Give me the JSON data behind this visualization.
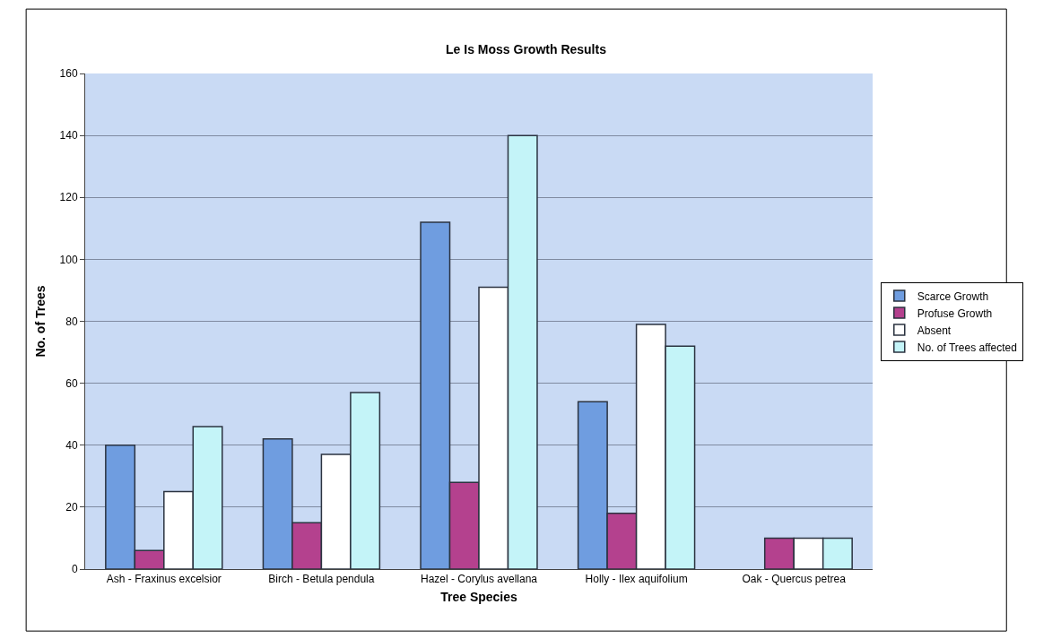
{
  "chart_data": {
    "type": "bar",
    "title": "Le Is Moss Growth Results",
    "xlabel": "Tree Species",
    "ylabel": "No. of Trees",
    "categories": [
      "Ash - Fraxinus excelsior",
      "Birch - Betula pendula",
      "Hazel - Corylus avellana",
      "Holly - Ilex aquifolium",
      "Oak - Quercus petrea"
    ],
    "series": [
      {
        "name": "Scarce Growth",
        "color": "#6f9de0",
        "values": [
          40,
          42,
          112,
          54,
          null
        ]
      },
      {
        "name": "Profuse Growth",
        "color": "#b4418e",
        "values": [
          6,
          15,
          28,
          18,
          10
        ]
      },
      {
        "name": "Absent",
        "color": "#ffffff",
        "values": [
          25,
          37,
          91,
          79,
          10
        ]
      },
      {
        "name": "No. of Trees affected",
        "color": "#c4f4f8",
        "values": [
          46,
          57,
          140,
          72,
          10
        ]
      }
    ],
    "ylim": [
      0,
      160
    ],
    "yticks": [
      0,
      20,
      40,
      60,
      80,
      100,
      120,
      140,
      160
    ],
    "grid": "y",
    "legend": "right"
  }
}
